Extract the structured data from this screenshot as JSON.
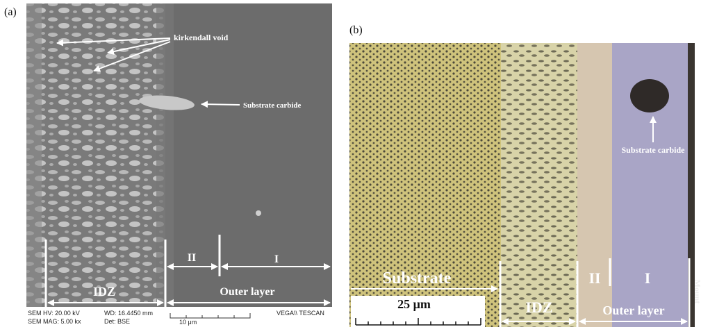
{
  "panel_a": {
    "label": "(a)",
    "void_label": "kirkendall void",
    "carbide_label": "Substrate carbide",
    "zone_II": "II",
    "zone_I": "I",
    "idz": "IDZ",
    "outer_layer": "Outer layer",
    "footer": {
      "hv": "SEM HV: 20.00 kV",
      "mag": "SEM MAG: 5.00 kx",
      "wd": "WD: 16.4450 mm",
      "det": "Det: BSE",
      "scale": "10 μm",
      "vendor": "VEGA\\\\ TESCAN"
    }
  },
  "panel_b": {
    "label": "(b)",
    "carbide_label": "Substrate carbide",
    "substrate": "Substrate",
    "scale": "25 μm",
    "idz": "IDZ",
    "zone_II": "II",
    "zone_I": "I",
    "outer_layer": "Outer layer",
    "mount": "Mount"
  }
}
